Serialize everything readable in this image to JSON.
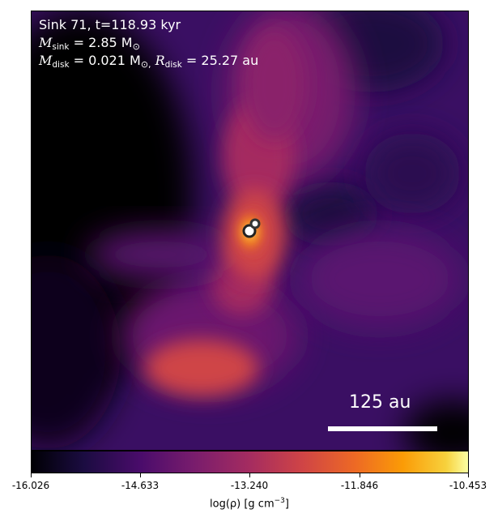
{
  "info": {
    "line1": "Sink 71, t=118.93 kyr",
    "msink_symbol": "M",
    "msink_sub": "sink",
    "msink_value": " = 2.85 M",
    "msink_unit": "⊙",
    "mdisk_symbol": "M",
    "mdisk_sub": "disk",
    "mdisk_value": " = 0.021 M",
    "mdisk_unit": "⊙,",
    "rdisk_symbol": "R",
    "rdisk_sub": "disk",
    "rdisk_value": " = 25.27 au"
  },
  "scale_bar": {
    "label": "125 au"
  },
  "colorbar": {
    "ticks": [
      "-16.026",
      "-14.633",
      "-13.240",
      "-11.846",
      "-10.453"
    ],
    "label": "log(ρ) [g cm",
    "label_exp": "−3",
    "label_end": "]",
    "colormap": "inferno"
  }
}
